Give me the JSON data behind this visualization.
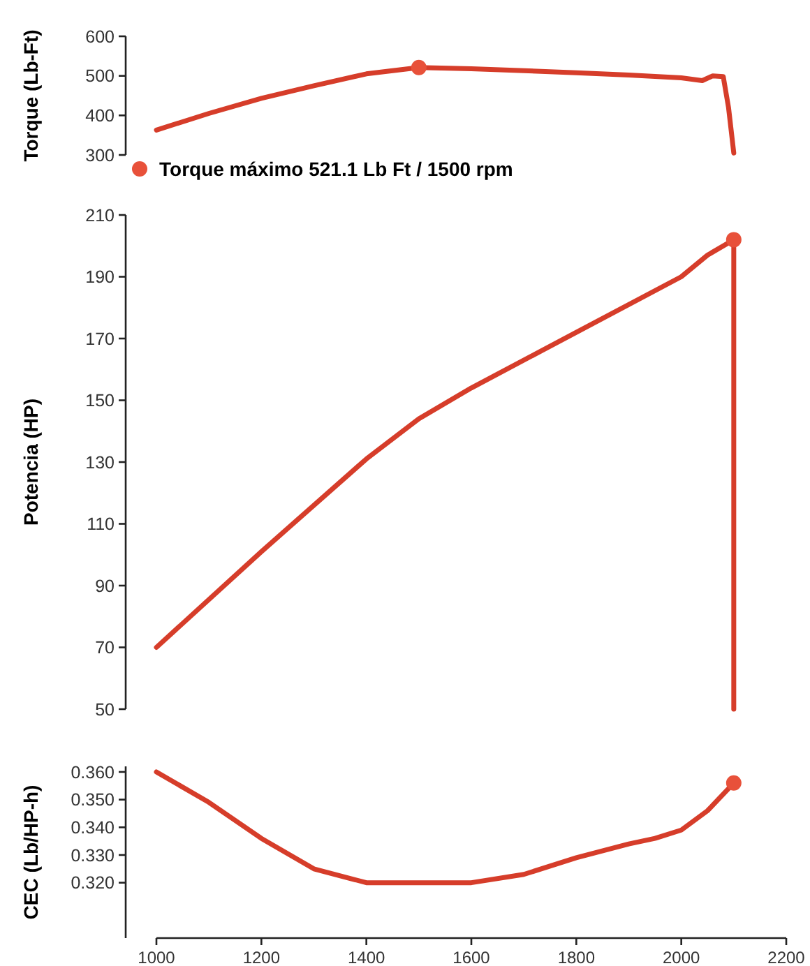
{
  "chart_data": [
    {
      "type": "line",
      "ylabel": "Torque (Lb-Ft)",
      "xlim": [
        1000,
        2200
      ],
      "ylim": [
        300,
        600
      ],
      "yticks": [
        300,
        400,
        500,
        600
      ],
      "tick_labels": "y",
      "legend": "bottom left",
      "series": [
        {
          "color": "#d63d2a",
          "x": [
            1000,
            1100,
            1200,
            1300,
            1400,
            1500,
            1600,
            1700,
            1800,
            1900,
            2000,
            2040,
            2060,
            2080,
            2090,
            2100
          ],
          "values": [
            363,
            405,
            443,
            475,
            505,
            521.1,
            518,
            513,
            508,
            502,
            495,
            488,
            500,
            498,
            420,
            305
          ]
        },
        {
          "type": "scatter",
          "name": "Torque máximo 521.1 Lb Ft / 1500 rpm",
          "color": "#e8513a",
          "x": [
            1500
          ],
          "values": [
            521.1
          ]
        }
      ]
    },
    {
      "type": "line",
      "ylabel": "Potencia (HP)",
      "xlim": [
        1000,
        2200
      ],
      "ylim": [
        50,
        210
      ],
      "yticks": [
        50,
        70,
        90,
        110,
        130,
        150,
        170,
        190,
        210
      ],
      "tick_labels": "y",
      "series": [
        {
          "color": "#d63d2a",
          "x": [
            1000,
            1200,
            1400,
            1500,
            1600,
            1800,
            2000,
            2050,
            2100,
            2100
          ],
          "values": [
            70,
            101,
            131,
            144,
            154,
            172,
            190,
            197,
            202,
            50
          ]
        },
        {
          "type": "scatter",
          "color": "#e8513a",
          "x": [
            2100
          ],
          "values": [
            202
          ]
        }
      ]
    },
    {
      "type": "line",
      "ylabel": "CEC (Lb/HP-h)",
      "xlim": [
        1000,
        2200
      ],
      "xticks": [
        1000,
        1200,
        1400,
        1600,
        1800,
        2000,
        2200
      ],
      "ylim": [
        0.3,
        0.362
      ],
      "yticks": [
        {
          "value": 0.32,
          "label": "0.320"
        },
        {
          "value": 0.33,
          "label": "0.330"
        },
        {
          "value": 0.34,
          "label": "0.340"
        },
        {
          "value": 0.35,
          "label": "0.350"
        },
        {
          "value": 0.36,
          "label": "0.360"
        }
      ],
      "series": [
        {
          "color": "#d63d2a",
          "x": [
            1000,
            1100,
            1200,
            1300,
            1400,
            1500,
            1600,
            1700,
            1800,
            1900,
            1950,
            2000,
            2050,
            2100
          ],
          "values": [
            0.36,
            0.349,
            0.336,
            0.325,
            0.32,
            0.32,
            0.32,
            0.323,
            0.329,
            0.334,
            0.336,
            0.339,
            0.346,
            0.356
          ]
        },
        {
          "type": "scatter",
          "color": "#e8513a",
          "x": [
            2100
          ],
          "values": [
            0.356
          ]
        }
      ]
    }
  ]
}
